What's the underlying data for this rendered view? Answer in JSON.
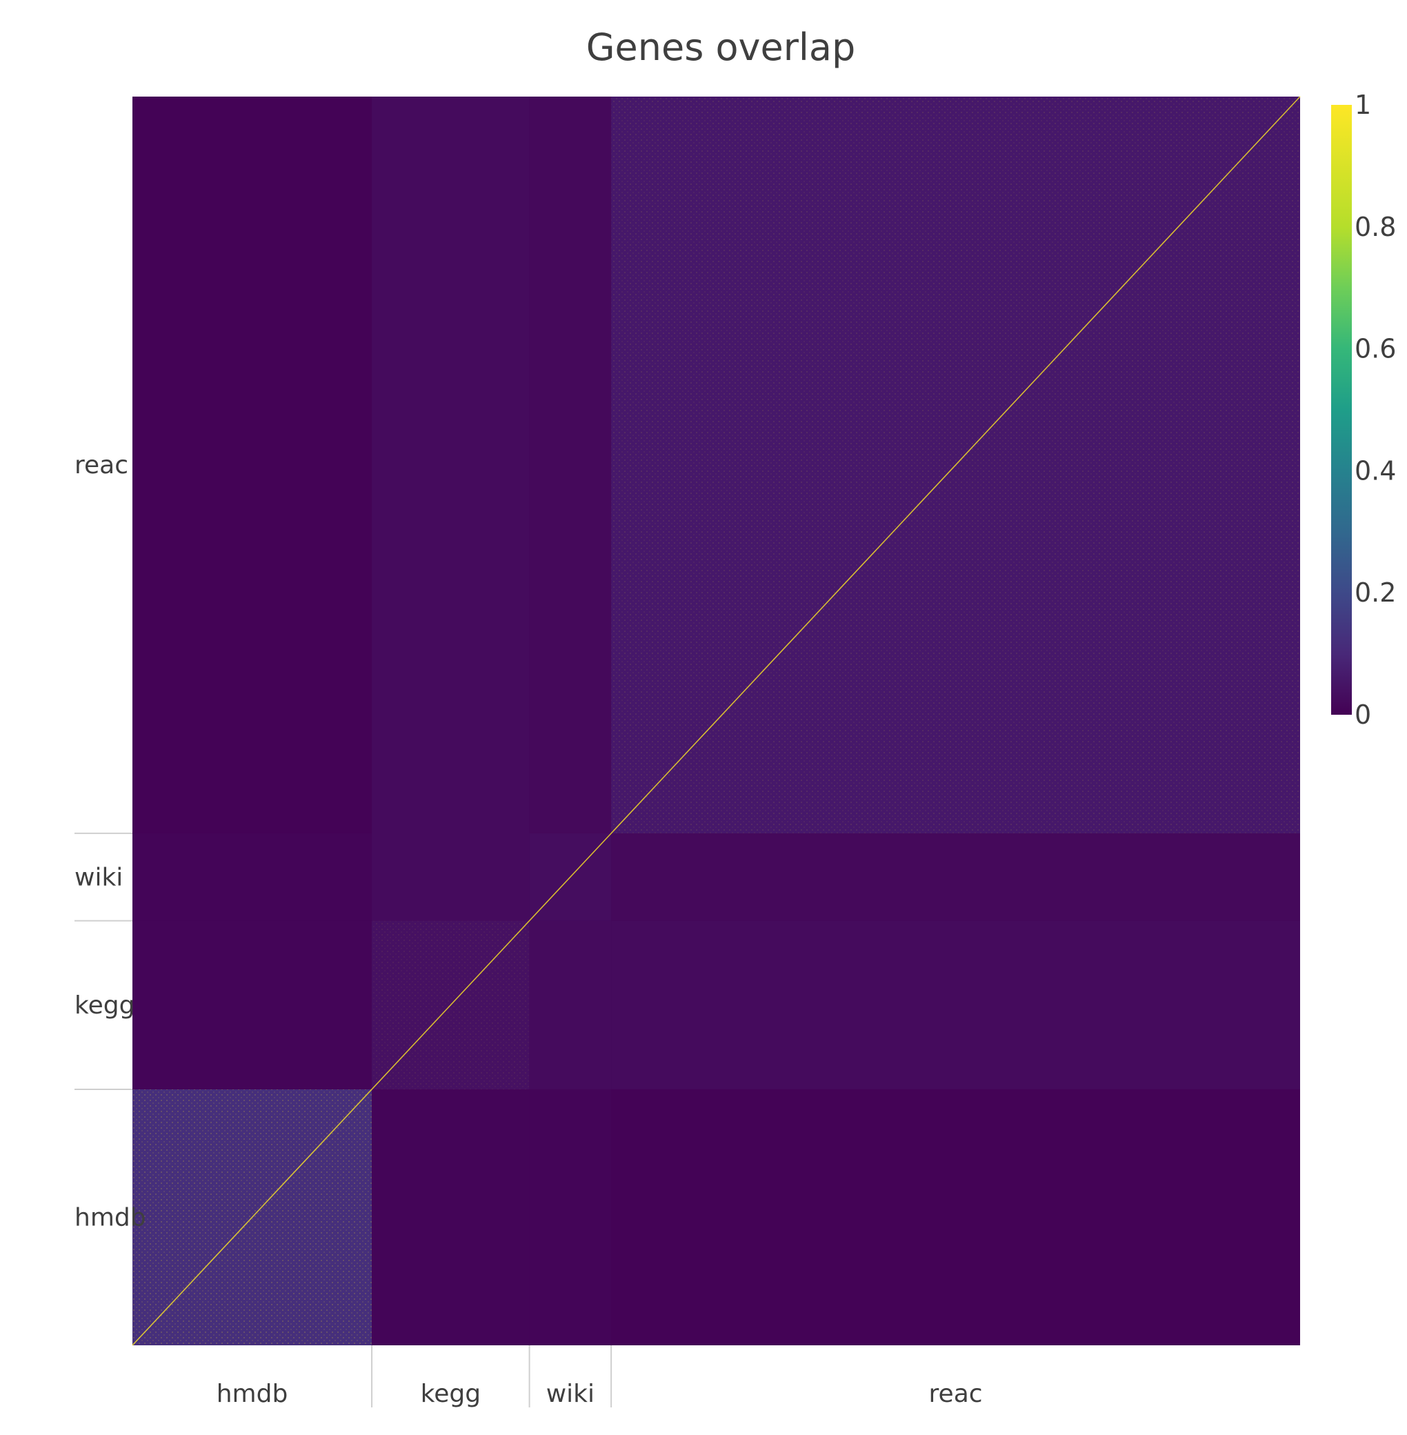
{
  "chart_data": {
    "type": "heatmap",
    "title": "Genes overlap",
    "categories": [
      "hmdb",
      "kegg",
      "wiki",
      "reac"
    ],
    "groups": [
      {
        "name": "hmdb",
        "fraction": 0.205
      },
      {
        "name": "kegg",
        "fraction": 0.135
      },
      {
        "name": "wiki",
        "fraction": 0.07
      },
      {
        "name": "reac",
        "fraction": 0.59
      }
    ],
    "block_mean_values": [
      [
        0.12,
        0.01,
        0.01,
        0.005
      ],
      [
        0.01,
        0.04,
        0.025,
        0.025
      ],
      [
        0.01,
        0.025,
        0.03,
        0.02
      ],
      [
        0.005,
        0.025,
        0.02,
        0.06
      ]
    ],
    "diagonal_value": 1,
    "zlim": [
      0,
      1
    ],
    "colorbar_ticks": [
      0,
      0.2,
      0.4,
      0.6,
      0.8,
      1
    ],
    "colorbar_tick_labels": [
      "0",
      "0.2",
      "0.4",
      "0.6",
      "0.8",
      "1"
    ],
    "colorscale": "viridis",
    "colors": {
      "low": "#440154",
      "mid": "#21918c",
      "high": "#fde725"
    }
  }
}
